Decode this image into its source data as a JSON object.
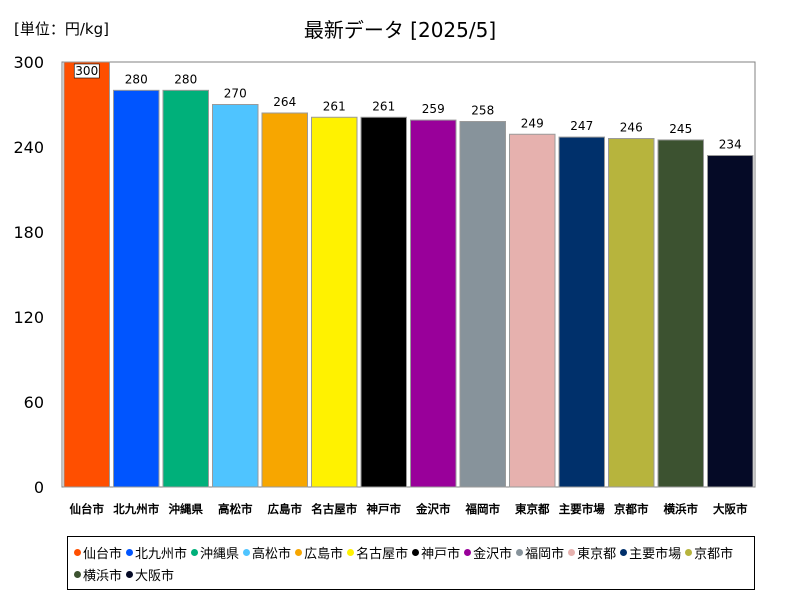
{
  "unit_label": "[単位：円/kg]",
  "chart_data": {
    "type": "bar",
    "title": "最新データ [2025/5]",
    "xlabel": "",
    "ylabel": "",
    "ylim": [
      0,
      300
    ],
    "yticks": [
      0,
      60,
      120,
      180,
      240,
      300
    ],
    "grid": false,
    "legend_position": "bottom",
    "categories": [
      "仙台市",
      "北九州市",
      "沖縄県",
      "高松市",
      "広島市",
      "名古屋市",
      "神戸市",
      "金沢市",
      "福岡市",
      "東京都",
      "主要市場",
      "京都市",
      "横浜市",
      "大阪市"
    ],
    "values": [
      300,
      280,
      280,
      270,
      264,
      261,
      261,
      259,
      258,
      249,
      247,
      246,
      245,
      234
    ],
    "colors": [
      "#ff4f00",
      "#0055ff",
      "#00b07a",
      "#4fc4ff",
      "#f7a600",
      "#fff200",
      "#000000",
      "#99009a",
      "#87939b",
      "#e6b1ae",
      "#00306b",
      "#b7b43d",
      "#3c5230",
      "#050a26"
    ]
  }
}
